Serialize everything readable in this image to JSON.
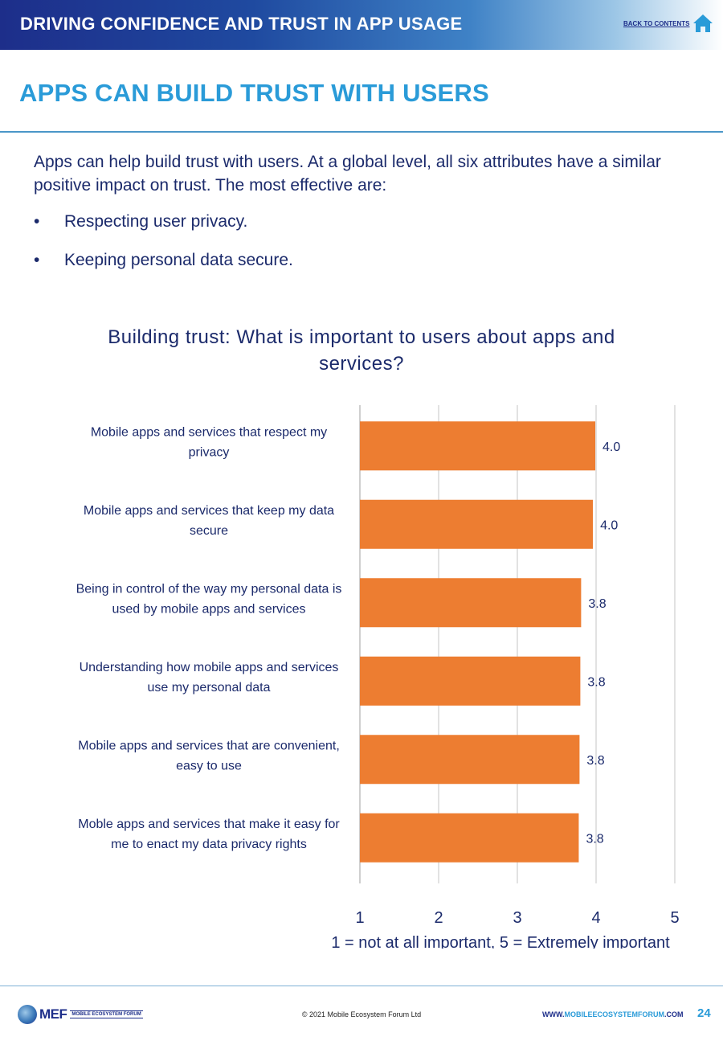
{
  "header": {
    "title": "DRIVING CONFIDENCE AND TRUST IN APP USAGE",
    "back_link": "BACK TO CONTENTS"
  },
  "page_title": "APPS CAN BUILD TRUST WITH USERS",
  "intro": "Apps can help build trust with users. At a global level, all six attributes have a similar positive impact on trust. The most effective are:",
  "bullets": [
    "Respecting user privacy.",
    "Keeping personal data secure."
  ],
  "chart_title": "Building trust: What is important to users about apps and services?",
  "chart_data": {
    "type": "bar",
    "orientation": "horizontal",
    "categories": [
      [
        "Mobile apps and services that respect my",
        "privacy"
      ],
      [
        "Mobile apps and services that keep my data",
        "secure"
      ],
      [
        "Being in control of the way my personal data is",
        "used by mobile apps and services"
      ],
      [
        "Understanding how mobile apps and services",
        "use my personal data"
      ],
      [
        "Mobile apps and services that are convenient,",
        "easy to use"
      ],
      [
        "Moble apps and services that make it easy for",
        "me to enact my data privacy rights"
      ]
    ],
    "values": [
      3.99,
      3.96,
      3.81,
      3.8,
      3.79,
      3.78
    ],
    "value_labels": [
      "4.0",
      "4.0",
      "3.8",
      "3.8",
      "3.8",
      "3.8"
    ],
    "xlim": [
      1,
      5
    ],
    "xticks": [
      "1",
      "2",
      "3",
      "4",
      "5"
    ],
    "xlabel": "1 = not at all important, 5 = Extremely important",
    "grid": true,
    "color": "#ed7d31"
  },
  "footer": {
    "logo_text": "MEF",
    "logo_sub": "MOBILE ECOSYSTEM FORUM",
    "copyright": "© 2021 Mobile Ecosystem Forum Ltd",
    "website_pre": "WWW.",
    "website_hl": "MOBILEECOSYSTEMFORUM",
    "website_post": ".COM",
    "page_number": "24"
  },
  "colors": {
    "header_dark": "#1d2e8a",
    "accent": "#2a9bd8",
    "text": "#1b2a6b",
    "bar": "#ed7d31"
  }
}
